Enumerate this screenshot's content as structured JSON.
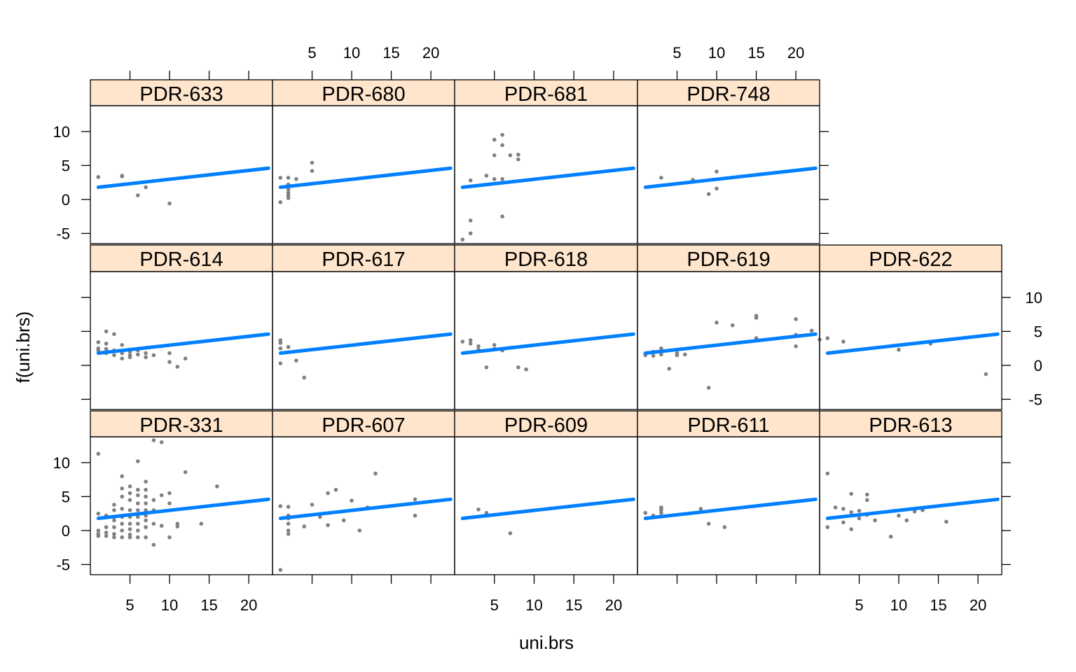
{
  "chart_data": {
    "type": "scatter",
    "layout": "lattice panels, 5 columns x 3 rows (top row has 4 panels)",
    "xlabel": "uni.brs",
    "ylabel": "f(uni.brs)",
    "xlim": [
      0,
      23
    ],
    "ylim": [
      -6.5,
      13.8
    ],
    "x_ticks": [
      5,
      10,
      15,
      20
    ],
    "y_ticks": [
      -5,
      0,
      5,
      10
    ],
    "colors": {
      "strip_bg": "#FFE5CC",
      "points": "#808080",
      "fit_line": "#0080FF",
      "frame": "#000000"
    },
    "fit_line": {
      "x": [
        1,
        22.5
      ],
      "y": [
        1.8,
        4.6
      ]
    },
    "panels": [
      {
        "label": "PDR-633",
        "row": 0,
        "col": 0,
        "x": [
          1,
          4,
          4,
          6,
          7,
          10
        ],
        "y": [
          3.3,
          3.5,
          3.4,
          0.6,
          1.8,
          -0.6
        ]
      },
      {
        "label": "PDR-680",
        "row": 0,
        "col": 1,
        "x": [
          1,
          1,
          2,
          2,
          2,
          2,
          2,
          2,
          3,
          5,
          5
        ],
        "y": [
          -0.4,
          3.2,
          3.2,
          2.2,
          1.5,
          1.0,
          0.6,
          0.2,
          3.0,
          4.2,
          5.4
        ]
      },
      {
        "label": "PDR-681",
        "row": 0,
        "col": 2,
        "x": [
          1,
          2,
          2,
          2,
          4,
          5,
          5,
          5,
          6,
          6,
          6,
          6,
          7,
          8,
          8
        ],
        "y": [
          -5.9,
          -5.0,
          -3.1,
          2.8,
          3.5,
          8.8,
          6.5,
          3.0,
          9.5,
          8.0,
          3.0,
          -2.5,
          6.5,
          6.6,
          5.9
        ]
      },
      {
        "label": "PDR-748",
        "row": 0,
        "col": 3,
        "x": [
          3,
          7,
          9,
          10,
          10
        ],
        "y": [
          3.2,
          2.9,
          0.8,
          4.1,
          1.6
        ]
      },
      {
        "label": "PDR-614",
        "row": 1,
        "col": 0,
        "x": [
          1,
          1,
          1,
          2,
          2,
          2,
          2,
          3,
          3,
          3,
          4,
          4,
          4,
          5,
          5,
          5,
          6,
          6,
          7,
          7,
          8,
          9,
          10,
          10,
          11,
          12
        ],
        "y": [
          2.2,
          3.4,
          2.5,
          5.0,
          3.2,
          2.4,
          1.8,
          4.6,
          1.5,
          2.2,
          1.0,
          1.8,
          3.0,
          1.2,
          2.0,
          1.5,
          1.6,
          2.2,
          1.2,
          1.8,
          1.5,
          2.8,
          1.8,
          0.5,
          -0.2,
          1.0
        ]
      },
      {
        "label": "PDR-617",
        "row": 1,
        "col": 1,
        "x": [
          1,
          1,
          1,
          1,
          2,
          3,
          4
        ],
        "y": [
          3.7,
          3.3,
          2.5,
          0.3,
          2.7,
          0.7,
          -1.8
        ]
      },
      {
        "label": "PDR-618",
        "row": 1,
        "col": 2,
        "x": [
          1,
          2,
          2,
          3,
          3,
          4,
          5,
          5,
          6,
          8,
          9
        ],
        "y": [
          3.5,
          3.7,
          3.2,
          2.8,
          2.3,
          -0.3,
          3.0,
          2.4,
          2.2,
          -0.3,
          -0.6
        ]
      },
      {
        "label": "PDR-619",
        "row": 1,
        "col": 3,
        "x": [
          1,
          1,
          2,
          2,
          3,
          3,
          3,
          4,
          5,
          5,
          6,
          9,
          10,
          12,
          15,
          15,
          15,
          20,
          20,
          20,
          22,
          23
        ],
        "y": [
          1.5,
          1.7,
          1.4,
          2.0,
          1.6,
          2.5,
          1.9,
          -0.5,
          1.5,
          1.8,
          1.6,
          -3.3,
          6.3,
          5.9,
          7.3,
          7.0,
          4.0,
          6.8,
          4.5,
          2.8,
          5.1,
          3.8
        ]
      },
      {
        "label": "PDR-622",
        "row": 1,
        "col": 4,
        "x": [
          1,
          3,
          10,
          14,
          21
        ],
        "y": [
          4.0,
          3.5,
          2.3,
          3.2,
          -1.3
        ]
      },
      {
        "label": "PDR-331",
        "row": 2,
        "col": 0,
        "x": [
          1,
          1,
          1,
          1,
          1,
          2,
          2,
          2,
          2,
          3,
          3,
          3,
          3,
          3,
          3,
          3,
          4,
          4,
          4,
          4,
          4,
          4,
          4,
          4,
          5,
          5,
          5,
          5,
          5,
          5,
          5,
          5,
          5,
          6,
          6,
          6,
          6,
          6,
          6,
          6,
          6,
          6,
          7,
          7,
          7,
          7,
          7,
          7,
          7,
          7,
          7,
          8,
          8,
          8,
          8,
          8,
          9,
          9,
          9,
          10,
          10,
          10,
          11,
          11,
          12,
          14,
          16
        ],
        "y": [
          11.3,
          2.5,
          0.0,
          -0.5,
          -0.8,
          2.2,
          0.5,
          -0.3,
          -0.8,
          3.8,
          3.0,
          2.0,
          1.5,
          0.5,
          -0.5,
          -1.0,
          8.0,
          6.2,
          5.0,
          3.2,
          2.0,
          1.0,
          0.0,
          -1.0,
          6.5,
          5.5,
          4.5,
          3.0,
          2.0,
          1.0,
          0.2,
          -0.6,
          -1.0,
          10.2,
          6.0,
          5.2,
          4.0,
          3.0,
          2.0,
          1.0,
          0.0,
          -1.0,
          7.2,
          6.0,
          5.0,
          4.0,
          3.0,
          2.2,
          1.5,
          0.5,
          -1.0,
          13.3,
          4.5,
          3.0,
          1.0,
          -2.1,
          13.0,
          5.2,
          0.7,
          5.5,
          4.0,
          -1.0,
          1.0,
          0.6,
          8.6,
          1.0,
          6.5
        ]
      },
      {
        "label": "PDR-607",
        "row": 2,
        "col": 1,
        "x": [
          1,
          1,
          2,
          2,
          2,
          2,
          2,
          2,
          4,
          5,
          6,
          7,
          7,
          8,
          9,
          10,
          11,
          12,
          13,
          18,
          18
        ],
        "y": [
          -5.8,
          3.6,
          3.5,
          2.2,
          1.8,
          0.0,
          -0.5,
          1.0,
          0.6,
          3.8,
          2.0,
          5.5,
          0.8,
          6.0,
          1.5,
          4.4,
          0.0,
          3.4,
          8.4,
          4.6,
          2.2
        ]
      },
      {
        "label": "PDR-609",
        "row": 2,
        "col": 2,
        "x": [
          3,
          4,
          7
        ],
        "y": [
          3.1,
          2.6,
          -0.4
        ]
      },
      {
        "label": "PDR-611",
        "row": 2,
        "col": 3,
        "x": [
          1,
          2,
          3,
          3,
          3,
          3,
          8,
          9,
          11
        ],
        "y": [
          2.6,
          2.2,
          3.4,
          3.2,
          3.0,
          2.6,
          3.2,
          1.0,
          0.5
        ]
      },
      {
        "label": "PDR-613",
        "row": 2,
        "col": 4,
        "x": [
          1,
          1,
          2,
          3,
          3,
          4,
          4,
          4,
          5,
          5,
          6,
          6,
          6,
          7,
          9,
          10,
          11,
          12,
          13,
          16
        ],
        "y": [
          8.4,
          0.5,
          3.4,
          3.2,
          1.2,
          5.4,
          2.7,
          0.2,
          2.9,
          1.8,
          5.3,
          4.5,
          2.3,
          1.5,
          -0.9,
          2.2,
          1.5,
          2.8,
          3.0,
          1.3
        ]
      }
    ]
  }
}
